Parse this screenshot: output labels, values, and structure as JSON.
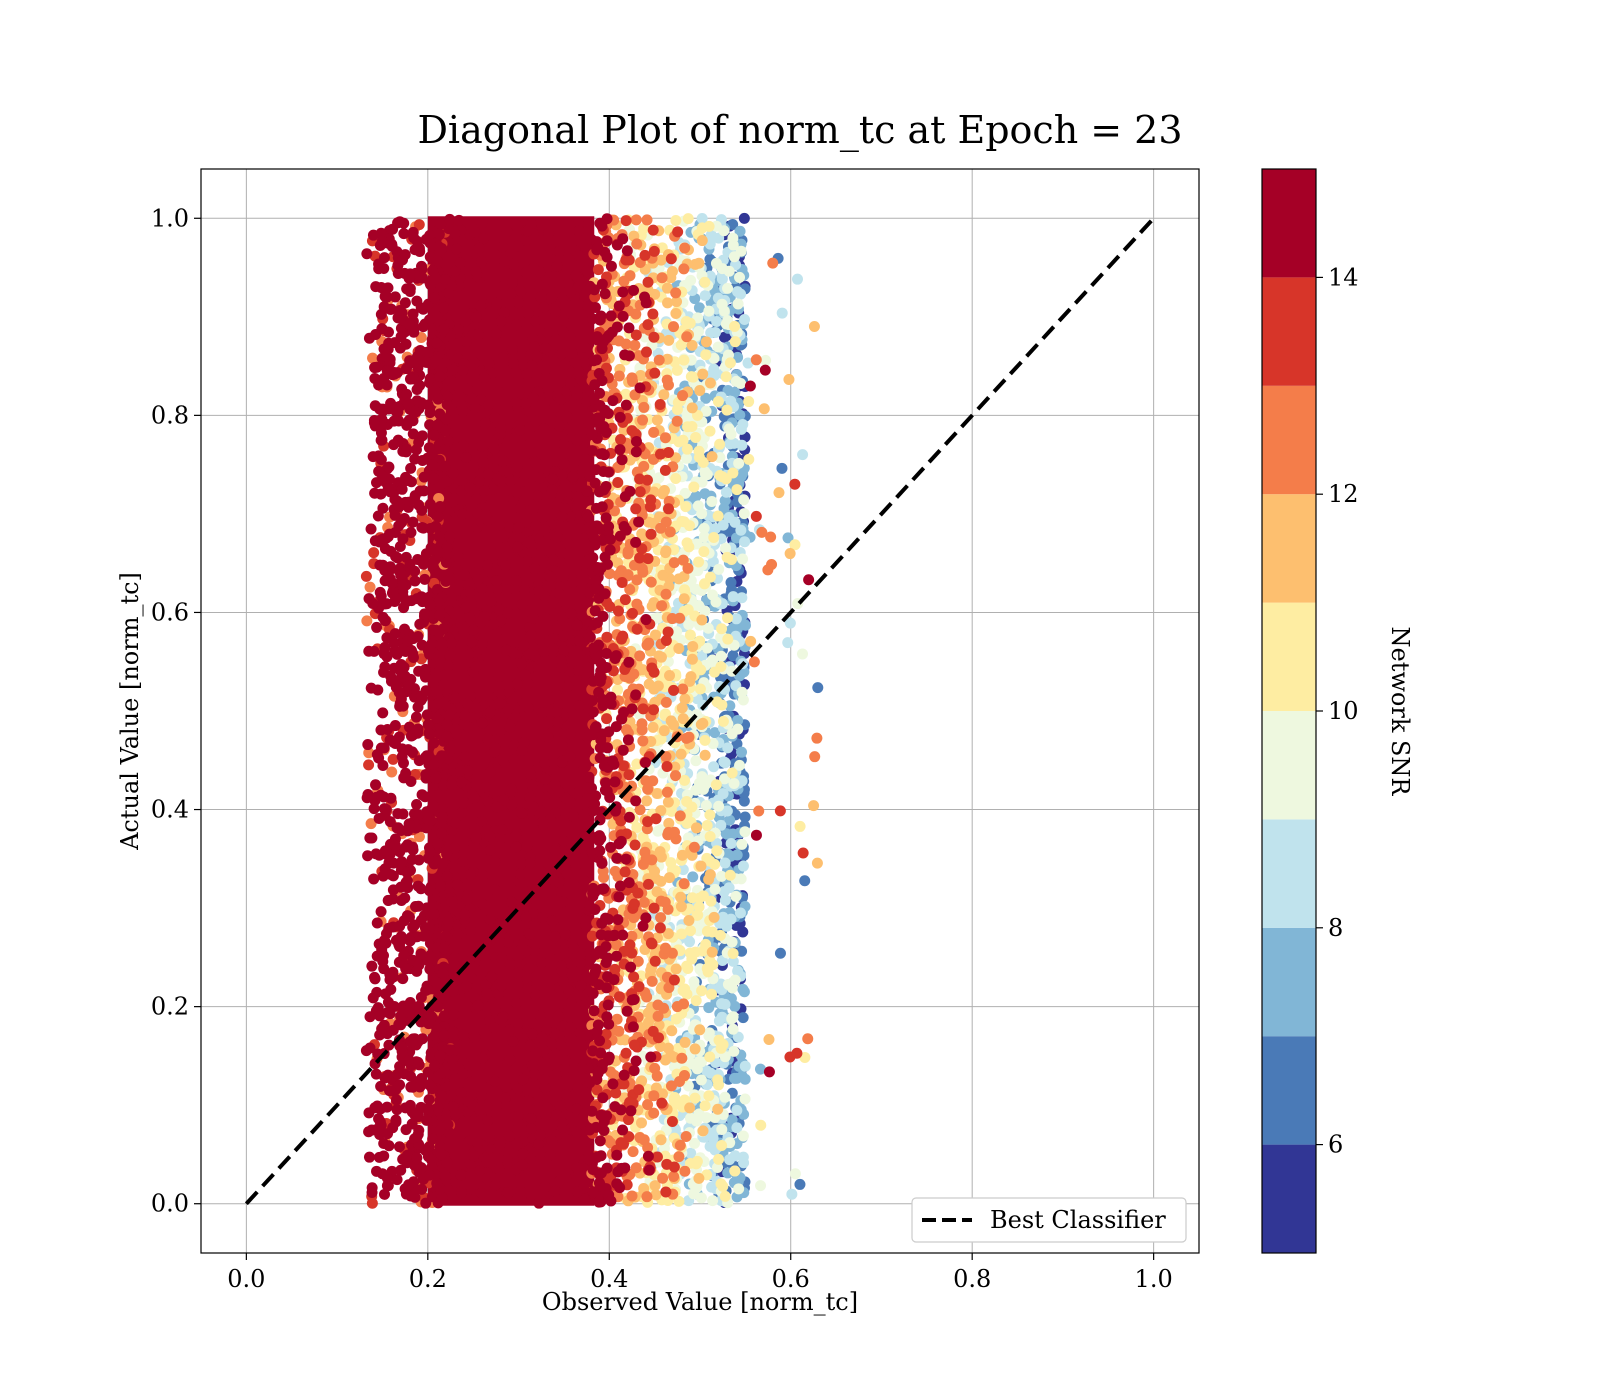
{
  "chart_data": {
    "type": "scatter",
    "title": "Diagonal Plot of norm_tc at Epoch = 23",
    "xlabel": "Observed Value [norm_tc]",
    "ylabel": "Actual Value [norm_tc]",
    "xlim": [
      -0.05,
      1.05
    ],
    "ylim": [
      -0.05,
      1.05
    ],
    "x_ticks": [
      "0.0",
      "0.2",
      "0.4",
      "0.6",
      "0.8",
      "1.0"
    ],
    "y_ticks": [
      "0.0",
      "0.2",
      "0.4",
      "0.6",
      "0.8",
      "1.0"
    ],
    "x_tick_values": [
      0.0,
      0.2,
      0.4,
      0.6,
      0.8,
      1.0
    ],
    "y_tick_values": [
      0.0,
      0.2,
      0.4,
      0.6,
      0.8,
      1.0
    ],
    "grid": true,
    "reference_line": {
      "name": "Best Classifier",
      "x": [
        0.0,
        1.0
      ],
      "y": [
        0.0,
        1.0
      ],
      "style": "dashed",
      "color": "#000000"
    },
    "legend": {
      "position": "bottom-right",
      "entries": [
        "Best Classifier"
      ]
    },
    "colorbar": {
      "label": "Network SNR",
      "range": [
        5,
        15
      ],
      "ticks": [
        "6",
        "8",
        "10",
        "12",
        "14"
      ],
      "tick_values": [
        6,
        8,
        10,
        12,
        14
      ],
      "colormap": "RdYlBu_r",
      "levels": [
        {
          "from": 5,
          "to": 6,
          "color": "#313695"
        },
        {
          "from": 6,
          "to": 7,
          "color": "#4a7ab7"
        },
        {
          "from": 7,
          "to": 8,
          "color": "#81b6d6"
        },
        {
          "from": 8,
          "to": 9,
          "color": "#c0e3ed"
        },
        {
          "from": 9,
          "to": 10,
          "color": "#eef8df"
        },
        {
          "from": 10,
          "to": 11,
          "color": "#feeda2"
        },
        {
          "from": 11,
          "to": 12,
          "color": "#fdbf6f"
        },
        {
          "from": 12,
          "to": 13,
          "color": "#f47d4a"
        },
        {
          "from": 13,
          "to": 14,
          "color": "#d73529"
        },
        {
          "from": 14,
          "to": 15,
          "color": "#a50026"
        }
      ]
    },
    "scatter_summary": {
      "x_range": [
        0.13,
        0.63
      ],
      "y_range": [
        0.0,
        1.0
      ],
      "dense_core_x": [
        0.2,
        0.4
      ],
      "core_color": "#a50026"
    }
  }
}
